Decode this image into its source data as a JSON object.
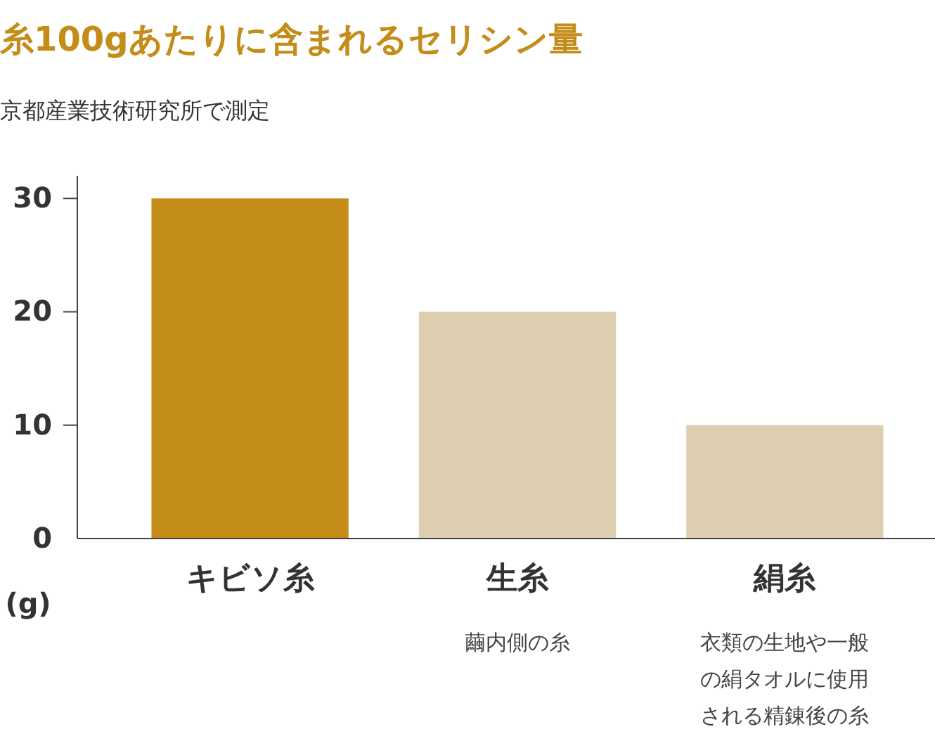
{
  "chart_data": {
    "type": "bar",
    "title": "糸100gあたりに含まれるセリシン量",
    "subtitle": "京都産業技術研究所で測定",
    "ylabel": "(g)",
    "categories": [
      "キビソ糸",
      "生糸",
      "絹糸"
    ],
    "values": [
      30,
      20,
      10
    ],
    "colors": [
      "#c48d1a",
      "#ddcfb0",
      "#ddcfb0"
    ],
    "ylim": [
      0,
      32
    ],
    "yticks": [
      0,
      10,
      20,
      30
    ],
    "grid": false,
    "annotations": [
      "繭内側の糸",
      "衣類の生地や一般の絹タオルに使用される精錬後の糸"
    ]
  }
}
